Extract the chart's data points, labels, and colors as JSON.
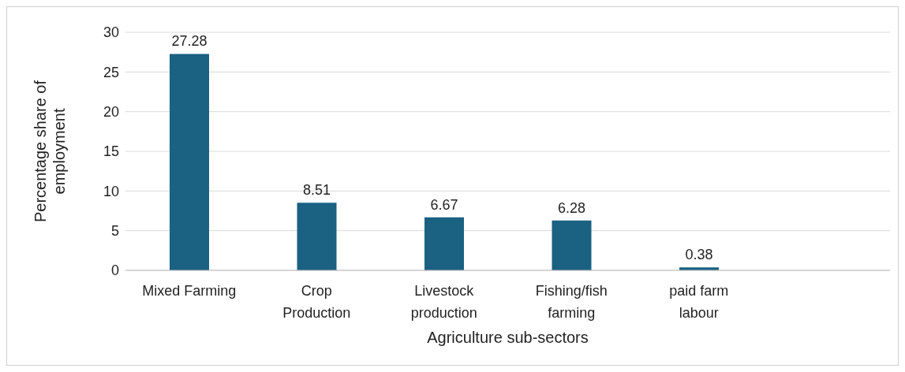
{
  "chart_data": {
    "type": "bar",
    "xlabel": "Agriculture sub-sectors",
    "ylabel": "Percentage share of employment",
    "categories": [
      "Mixed Farming",
      "Crop Production",
      "Livestock production",
      "Fishing/fish farming",
      "paid farm labour",
      null
    ],
    "values": [
      27.28,
      8.51,
      6.67,
      6.28,
      0.38,
      null
    ],
    "color": "#1a6182",
    "ylim": [
      0,
      30
    ],
    "yticks": [
      0,
      5,
      10,
      15,
      20,
      25,
      30
    ],
    "grid": "y",
    "data_labels": true,
    "legend": false
  }
}
